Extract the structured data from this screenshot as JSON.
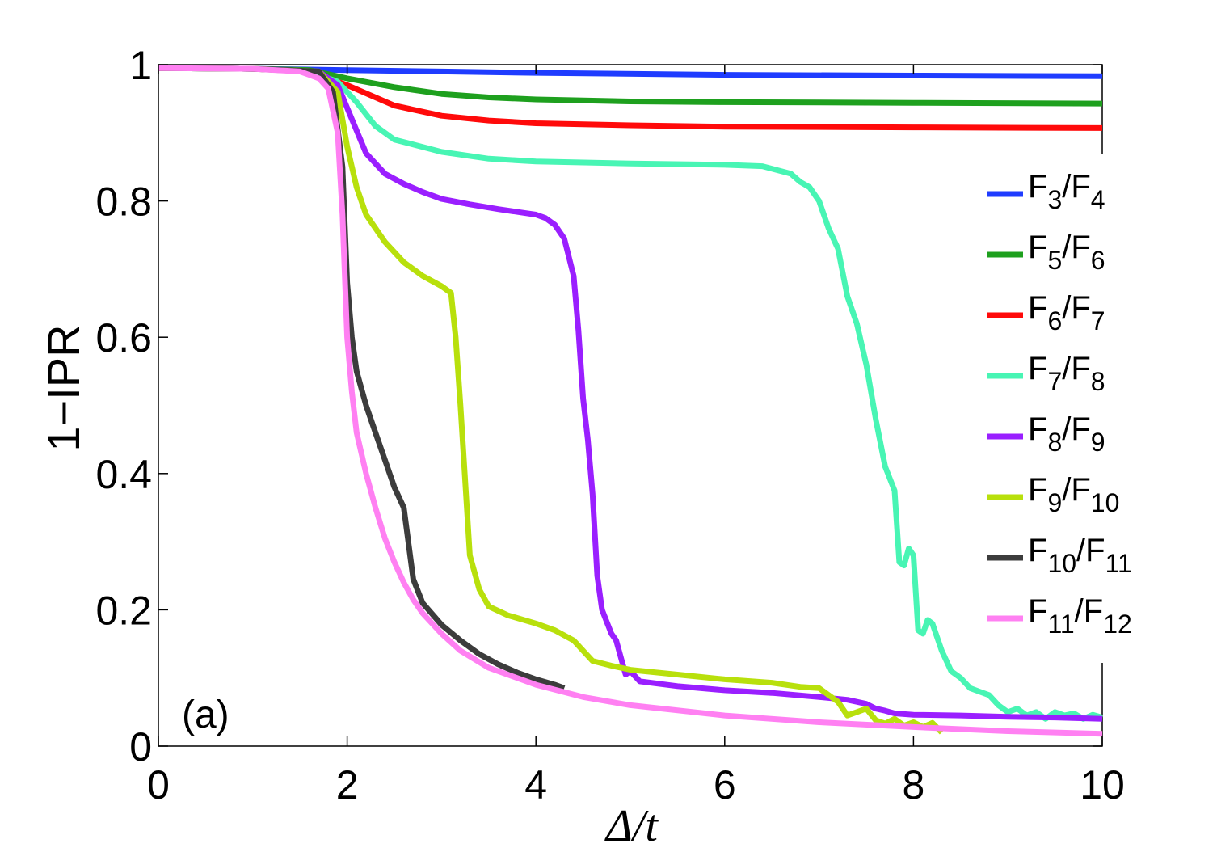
{
  "chart_data": {
    "type": "line",
    "title": "",
    "xlabel": "Δ/t",
    "ylabel": "1−IPR",
    "xlim": [
      0,
      10
    ],
    "ylim": [
      0,
      1
    ],
    "x_ticks": [
      0,
      2,
      4,
      6,
      8,
      10
    ],
    "y_ticks": [
      0,
      0.2,
      0.4,
      0.6,
      0.8,
      1
    ],
    "x_tick_labels": [
      "0",
      "2",
      "4",
      "6",
      "8",
      "10"
    ],
    "y_tick_labels": [
      "0",
      "0.2",
      "0.4",
      "0.6",
      "0.8",
      "1"
    ],
    "grid": false,
    "legend_position": "right",
    "annotation": "(a)",
    "series": [
      {
        "name": "F3/F4",
        "num": "F",
        "num_sub": "3",
        "den": "F",
        "den_sub": "4",
        "color": "#1f3cff",
        "points": [
          [
            0,
            0.995
          ],
          [
            1,
            0.994
          ],
          [
            1.5,
            0.993
          ],
          [
            2,
            0.992
          ],
          [
            3,
            0.99
          ],
          [
            4,
            0.988
          ],
          [
            6,
            0.985
          ],
          [
            8,
            0.984
          ],
          [
            10,
            0.983
          ]
        ]
      },
      {
        "name": "F5/F6",
        "num": "F",
        "num_sub": "5",
        "den": "F",
        "den_sub": "6",
        "color": "#1ea01e",
        "points": [
          [
            0,
            0.995
          ],
          [
            1,
            0.994
          ],
          [
            1.6,
            0.992
          ],
          [
            2,
            0.98
          ],
          [
            2.5,
            0.967
          ],
          [
            3,
            0.957
          ],
          [
            3.5,
            0.952
          ],
          [
            4,
            0.949
          ],
          [
            5,
            0.946
          ],
          [
            6,
            0.945
          ],
          [
            8,
            0.944
          ],
          [
            10,
            0.943
          ]
        ]
      },
      {
        "name": "F6/F7",
        "num": "F",
        "num_sub": "6",
        "den": "F",
        "den_sub": "7",
        "color": "#ff0a0a",
        "points": [
          [
            0,
            0.995
          ],
          [
            1,
            0.994
          ],
          [
            1.6,
            0.99
          ],
          [
            2,
            0.97
          ],
          [
            2.5,
            0.94
          ],
          [
            3,
            0.925
          ],
          [
            3.5,
            0.918
          ],
          [
            4,
            0.914
          ],
          [
            5,
            0.911
          ],
          [
            6,
            0.909
          ],
          [
            8,
            0.908
          ],
          [
            10,
            0.907
          ]
        ]
      },
      {
        "name": "F7/F8",
        "num": "F",
        "num_sub": "7",
        "den": "F",
        "den_sub": "8",
        "color": "#48f5b4",
        "points": [
          [
            0,
            0.995
          ],
          [
            1,
            0.994
          ],
          [
            1.6,
            0.99
          ],
          [
            1.9,
            0.975
          ],
          [
            2.1,
            0.945
          ],
          [
            2.3,
            0.91
          ],
          [
            2.5,
            0.89
          ],
          [
            3,
            0.872
          ],
          [
            3.5,
            0.862
          ],
          [
            4,
            0.858
          ],
          [
            5,
            0.855
          ],
          [
            6,
            0.853
          ],
          [
            6.4,
            0.851
          ],
          [
            6.7,
            0.84
          ],
          [
            6.8,
            0.828
          ],
          [
            6.9,
            0.82
          ],
          [
            7.0,
            0.8
          ],
          [
            7.1,
            0.76
          ],
          [
            7.2,
            0.73
          ],
          [
            7.3,
            0.66
          ],
          [
            7.4,
            0.62
          ],
          [
            7.5,
            0.56
          ],
          [
            7.6,
            0.48
          ],
          [
            7.7,
            0.41
          ],
          [
            7.8,
            0.375
          ],
          [
            7.85,
            0.27
          ],
          [
            7.9,
            0.265
          ],
          [
            7.95,
            0.29
          ],
          [
            8.0,
            0.28
          ],
          [
            8.05,
            0.17
          ],
          [
            8.1,
            0.165
          ],
          [
            8.15,
            0.185
          ],
          [
            8.2,
            0.18
          ],
          [
            8.3,
            0.14
          ],
          [
            8.4,
            0.11
          ],
          [
            8.5,
            0.1
          ],
          [
            8.6,
            0.085
          ],
          [
            8.7,
            0.08
          ],
          [
            8.8,
            0.075
          ],
          [
            8.9,
            0.06
          ],
          [
            9.0,
            0.05
          ],
          [
            9.1,
            0.055
          ],
          [
            9.2,
            0.045
          ],
          [
            9.3,
            0.05
          ],
          [
            9.4,
            0.04
          ],
          [
            9.5,
            0.05
          ],
          [
            9.6,
            0.045
          ],
          [
            9.7,
            0.048
          ],
          [
            9.8,
            0.04
          ],
          [
            9.9,
            0.046
          ],
          [
            10,
            0.042
          ]
        ]
      },
      {
        "name": "F8/F9",
        "num": "F",
        "num_sub": "8",
        "den": "F",
        "den_sub": "9",
        "color": "#9a1fff",
        "points": [
          [
            0,
            0.995
          ],
          [
            1,
            0.994
          ],
          [
            1.7,
            0.99
          ],
          [
            1.9,
            0.97
          ],
          [
            2.05,
            0.92
          ],
          [
            2.2,
            0.87
          ],
          [
            2.4,
            0.84
          ],
          [
            2.6,
            0.825
          ],
          [
            2.8,
            0.813
          ],
          [
            3.0,
            0.803
          ],
          [
            3.3,
            0.795
          ],
          [
            3.6,
            0.788
          ],
          [
            4.0,
            0.78
          ],
          [
            4.1,
            0.775
          ],
          [
            4.2,
            0.765
          ],
          [
            4.3,
            0.745
          ],
          [
            4.4,
            0.69
          ],
          [
            4.45,
            0.61
          ],
          [
            4.5,
            0.51
          ],
          [
            4.55,
            0.45
          ],
          [
            4.6,
            0.37
          ],
          [
            4.65,
            0.25
          ],
          [
            4.7,
            0.2
          ],
          [
            4.8,
            0.165
          ],
          [
            4.85,
            0.155
          ],
          [
            4.95,
            0.105
          ],
          [
            5.0,
            0.11
          ],
          [
            5.1,
            0.095
          ],
          [
            5.5,
            0.088
          ],
          [
            6,
            0.082
          ],
          [
            6.5,
            0.078
          ],
          [
            7,
            0.072
          ],
          [
            7.3,
            0.068
          ],
          [
            7.5,
            0.062
          ],
          [
            7.6,
            0.055
          ],
          [
            7.7,
            0.052
          ],
          [
            7.8,
            0.048
          ],
          [
            8,
            0.046
          ],
          [
            8.5,
            0.045
          ],
          [
            9,
            0.043
          ],
          [
            9.5,
            0.042
          ],
          [
            10,
            0.04
          ]
        ]
      },
      {
        "name": "F9/F10",
        "num": "F",
        "num_sub": "9",
        "den": "F",
        "den_sub": "10",
        "color": "#b8e00c",
        "points": [
          [
            0,
            0.995
          ],
          [
            1,
            0.994
          ],
          [
            1.7,
            0.99
          ],
          [
            1.9,
            0.96
          ],
          [
            2.0,
            0.88
          ],
          [
            2.1,
            0.82
          ],
          [
            2.2,
            0.78
          ],
          [
            2.4,
            0.74
          ],
          [
            2.6,
            0.71
          ],
          [
            2.8,
            0.69
          ],
          [
            3.0,
            0.675
          ],
          [
            3.1,
            0.665
          ],
          [
            3.15,
            0.6
          ],
          [
            3.2,
            0.5
          ],
          [
            3.3,
            0.28
          ],
          [
            3.4,
            0.23
          ],
          [
            3.5,
            0.205
          ],
          [
            3.7,
            0.192
          ],
          [
            4.0,
            0.18
          ],
          [
            4.2,
            0.17
          ],
          [
            4.4,
            0.155
          ],
          [
            4.5,
            0.14
          ],
          [
            4.6,
            0.125
          ],
          [
            4.8,
            0.118
          ],
          [
            5.0,
            0.112
          ],
          [
            5.5,
            0.105
          ],
          [
            6.0,
            0.098
          ],
          [
            6.5,
            0.093
          ],
          [
            6.8,
            0.087
          ],
          [
            7.0,
            0.085
          ],
          [
            7.2,
            0.065
          ],
          [
            7.3,
            0.045
          ],
          [
            7.4,
            0.05
          ],
          [
            7.5,
            0.055
          ],
          [
            7.6,
            0.038
          ],
          [
            7.7,
            0.033
          ],
          [
            7.8,
            0.04
          ],
          [
            7.9,
            0.03
          ],
          [
            8.0,
            0.035
          ],
          [
            8.1,
            0.028
          ],
          [
            8.2,
            0.034
          ],
          [
            8.3,
            0.02
          ]
        ]
      },
      {
        "name": "F10/F11",
        "num": "F",
        "num_sub": "10",
        "den": "F",
        "den_sub": "11",
        "color": "#3c3c3c",
        "points": [
          [
            0,
            0.995
          ],
          [
            1,
            0.994
          ],
          [
            1.7,
            0.99
          ],
          [
            1.85,
            0.96
          ],
          [
            1.95,
            0.85
          ],
          [
            2.0,
            0.68
          ],
          [
            2.05,
            0.6
          ],
          [
            2.1,
            0.55
          ],
          [
            2.2,
            0.5
          ],
          [
            2.3,
            0.46
          ],
          [
            2.4,
            0.42
          ],
          [
            2.5,
            0.38
          ],
          [
            2.6,
            0.35
          ],
          [
            2.7,
            0.245
          ],
          [
            2.8,
            0.21
          ],
          [
            3.0,
            0.178
          ],
          [
            3.2,
            0.155
          ],
          [
            3.4,
            0.135
          ],
          [
            3.6,
            0.12
          ],
          [
            3.8,
            0.108
          ],
          [
            4.0,
            0.098
          ],
          [
            4.2,
            0.09
          ],
          [
            4.3,
            0.085
          ]
        ]
      },
      {
        "name": "F11/F12",
        "num": "F",
        "num_sub": "11",
        "den": "F",
        "den_sub": "12",
        "color": "#ff80f2",
        "points": [
          [
            0,
            0.995
          ],
          [
            1,
            0.994
          ],
          [
            1.5,
            0.99
          ],
          [
            1.7,
            0.98
          ],
          [
            1.8,
            0.965
          ],
          [
            1.9,
            0.9
          ],
          [
            1.95,
            0.78
          ],
          [
            2.0,
            0.6
          ],
          [
            2.05,
            0.52
          ],
          [
            2.1,
            0.46
          ],
          [
            2.2,
            0.4
          ],
          [
            2.3,
            0.35
          ],
          [
            2.4,
            0.305
          ],
          [
            2.5,
            0.27
          ],
          [
            2.6,
            0.24
          ],
          [
            2.7,
            0.215
          ],
          [
            2.8,
            0.195
          ],
          [
            3.0,
            0.165
          ],
          [
            3.2,
            0.14
          ],
          [
            3.5,
            0.115
          ],
          [
            4.0,
            0.09
          ],
          [
            4.5,
            0.072
          ],
          [
            5.0,
            0.06
          ],
          [
            6.0,
            0.045
          ],
          [
            7.0,
            0.035
          ],
          [
            8.0,
            0.028
          ],
          [
            9.0,
            0.022
          ],
          [
            10,
            0.018
          ]
        ]
      }
    ]
  }
}
